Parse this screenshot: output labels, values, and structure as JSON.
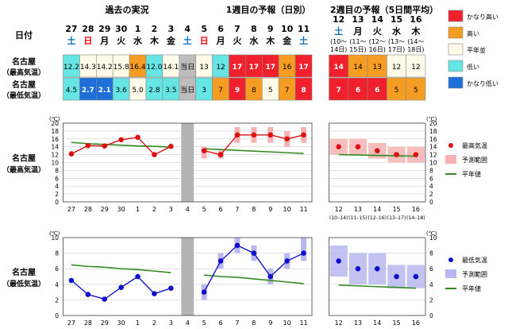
{
  "header": {
    "period_past": "過去の実況",
    "period_week1": "1週目の予報（日別）",
    "period_week2": "2週目の予報（5日間平均）",
    "date_label": "日付"
  },
  "dates": {
    "days": [
      "27",
      "28",
      "29",
      "30",
      "1",
      "2",
      "3",
      "4",
      "5",
      "6",
      "7",
      "8",
      "9",
      "10",
      "11"
    ],
    "weekdays": [
      "土",
      "日",
      "月",
      "火",
      "水",
      "木",
      "金",
      "土",
      "日",
      "月",
      "火",
      "水",
      "木",
      "金",
      "土"
    ],
    "weekday_colors": [
      "#0070c0",
      "#ff0000",
      "#000000",
      "#000000",
      "#000000",
      "#000000",
      "#000000",
      "#0070c0",
      "#ff0000",
      "#000000",
      "#000000",
      "#000000",
      "#000000",
      "#000000",
      "#0070c0"
    ],
    "week2": [
      {
        "day": "12",
        "wd": "土",
        "range": "(10〜",
        "range2": "14日)",
        "wd_color": "#0070c0"
      },
      {
        "day": "13",
        "wd": "月",
        "range": "(11〜",
        "range2": "15日)",
        "wd_color": "#000000"
      },
      {
        "day": "14",
        "wd": "火",
        "range": "(12〜",
        "range2": "16日)",
        "wd_color": "#000000"
      },
      {
        "day": "15",
        "wd": "水",
        "range": "(13〜",
        "range2": "17日)",
        "wd_color": "#000000"
      },
      {
        "day": "16",
        "wd": "木",
        "range": "(14〜",
        "range2": "18日)",
        "wd_color": "#000000"
      }
    ]
  },
  "table": {
    "rows": [
      {
        "label1": "名古屋",
        "label2": "（最高気温）",
        "cells": [
          {
            "v": "12.2",
            "bg": "#66e5e5",
            "fg": "#000000"
          },
          {
            "v": "14.3",
            "bg": "#fffbe8",
            "fg": "#000000"
          },
          {
            "v": "14.2",
            "bg": "#fffbe8",
            "fg": "#000000"
          },
          {
            "v": "15.8",
            "bg": "#fffbe8",
            "fg": "#000000"
          },
          {
            "v": "16.4",
            "bg": "#f59c22",
            "fg": "#000000"
          },
          {
            "v": "12.0",
            "bg": "#66e5e5",
            "fg": "#000000"
          },
          {
            "v": "14.1",
            "bg": "#fffbe8",
            "fg": "#000000"
          },
          {
            "v": "当日",
            "bg": "#bdbdbd",
            "fg": "#000000"
          },
          {
            "v": "13",
            "bg": "#fffbe8",
            "fg": "#000000"
          },
          {
            "v": "12",
            "bg": "#66e5e5",
            "fg": "#000000"
          },
          {
            "v": "17",
            "bg": "#f0202c",
            "fg": "#ffffff"
          },
          {
            "v": "17",
            "bg": "#f0202c",
            "fg": "#ffffff"
          },
          {
            "v": "17",
            "bg": "#f0202c",
            "fg": "#ffffff"
          },
          {
            "v": "16",
            "bg": "#f59c22",
            "fg": "#000000"
          },
          {
            "v": "17",
            "bg": "#f0202c",
            "fg": "#ffffff"
          }
        ],
        "week2": [
          {
            "v": "14",
            "bg": "#f0202c",
            "fg": "#ffffff"
          },
          {
            "v": "14",
            "bg": "#f59c22",
            "fg": "#000000"
          },
          {
            "v": "13",
            "bg": "#f59c22",
            "fg": "#000000"
          },
          {
            "v": "12",
            "bg": "#fffbe8",
            "fg": "#000000"
          },
          {
            "v": "12",
            "bg": "#fffbe8",
            "fg": "#000000"
          }
        ]
      },
      {
        "label1": "名古屋",
        "label2": "（最低気温）",
        "cells": [
          {
            "v": "4.5",
            "bg": "#66e5e5",
            "fg": "#000000"
          },
          {
            "v": "2.7",
            "bg": "#1f6fd8",
            "fg": "#ffffff"
          },
          {
            "v": "2.1",
            "bg": "#1f6fd8",
            "fg": "#ffffff"
          },
          {
            "v": "3.6",
            "bg": "#66e5e5",
            "fg": "#000000"
          },
          {
            "v": "5.0",
            "bg": "#fffbe8",
            "fg": "#000000"
          },
          {
            "v": "2.8",
            "bg": "#66e5e5",
            "fg": "#000000"
          },
          {
            "v": "3.5",
            "bg": "#66e5e5",
            "fg": "#000000"
          },
          {
            "v": "当日",
            "bg": "#bdbdbd",
            "fg": "#000000"
          },
          {
            "v": "3",
            "bg": "#66e5e5",
            "fg": "#000000"
          },
          {
            "v": "7",
            "bg": "#f59c22",
            "fg": "#000000"
          },
          {
            "v": "9",
            "bg": "#f0202c",
            "fg": "#ffffff"
          },
          {
            "v": "8",
            "bg": "#f59c22",
            "fg": "#000000"
          },
          {
            "v": "5",
            "bg": "#fffbe8",
            "fg": "#000000"
          },
          {
            "v": "7",
            "bg": "#f59c22",
            "fg": "#000000"
          },
          {
            "v": "8",
            "bg": "#f0202c",
            "fg": "#ffffff"
          }
        ],
        "week2": [
          {
            "v": "7",
            "bg": "#f0202c",
            "fg": "#ffffff"
          },
          {
            "v": "6",
            "bg": "#f0202c",
            "fg": "#ffffff"
          },
          {
            "v": "6",
            "bg": "#f0202c",
            "fg": "#ffffff"
          },
          {
            "v": "5",
            "bg": "#f59c22",
            "fg": "#000000"
          },
          {
            "v": "5",
            "bg": "#f59c22",
            "fg": "#000000"
          }
        ]
      }
    ]
  },
  "category_legend": [
    {
      "label": "かなり高い",
      "color": "#f0202c"
    },
    {
      "label": "高い",
      "color": "#f59c22"
    },
    {
      "label": "平年並",
      "color": "#fffbe8"
    },
    {
      "label": "低い",
      "color": "#66e5e5"
    },
    {
      "label": "かなり低い",
      "color": "#1f6fd8"
    }
  ],
  "chart_data": [
    {
      "type": "line",
      "title": "名古屋（最高気温）",
      "label1": "名古屋",
      "label2": "（最高気温）",
      "unit": "(℃)",
      "ylim": [
        0,
        20
      ],
      "yticks": [
        0,
        2,
        4,
        6,
        8,
        10,
        12,
        14,
        16,
        18,
        20
      ],
      "x_daily": [
        "27",
        "28",
        "29",
        "30",
        "1",
        "2",
        "3",
        "4",
        "5",
        "6",
        "7",
        "8",
        "9",
        "10",
        "11"
      ],
      "x_week2": [
        "12",
        "13",
        "14",
        "15",
        "16"
      ],
      "x_week2_ranges": [
        "(10–14)",
        "(11–15)",
        "(12–16)",
        "(13–17)",
        "(14–18)"
      ],
      "observed": [
        12.2,
        14.3,
        14.2,
        15.8,
        16.4,
        12.0,
        14.1
      ],
      "forecast": [
        13,
        12,
        17,
        17,
        17,
        16,
        17
      ],
      "forecast_range": [
        [
          11,
          14
        ],
        [
          11,
          13
        ],
        [
          15,
          19
        ],
        [
          15,
          19
        ],
        [
          15,
          19
        ],
        [
          14,
          18
        ],
        [
          15,
          19
        ]
      ],
      "normal_past": [
        15.1,
        14.8,
        14.6,
        14.4,
        14.2,
        14.1,
        13.9
      ],
      "normal_week1": [
        13.5,
        13.3,
        13.1,
        12.9,
        12.7,
        12.5,
        12.3
      ],
      "week2_forecast": [
        14,
        14,
        13,
        12,
        12
      ],
      "week2_range": [
        [
          12,
          16
        ],
        [
          12,
          16
        ],
        [
          11,
          15
        ],
        [
          10,
          14
        ],
        [
          10,
          14
        ]
      ],
      "week2_normal": [
        12.0,
        11.9,
        11.8,
        11.7,
        11.6
      ],
      "series_color": "#dd1111",
      "range_color": "#f7b3b3",
      "normal_color": "#338a22",
      "legend": [
        "最高気温",
        "予測範囲",
        "平年値"
      ]
    },
    {
      "type": "line",
      "title": "名古屋（最低気温）",
      "label1": "名古屋",
      "label2": "（最低気温）",
      "unit": "(℃)",
      "ylim": [
        0,
        10
      ],
      "yticks": [
        0,
        2,
        4,
        6,
        8,
        10
      ],
      "x_daily": [
        "27",
        "28",
        "29",
        "30",
        "1",
        "2",
        "3",
        "4",
        "5",
        "6",
        "7",
        "8",
        "9",
        "10",
        "11"
      ],
      "x_week2": [
        "12",
        "13",
        "14",
        "15",
        "16"
      ],
      "x_week2_ranges": [
        "(10–14)",
        "(11–15)",
        "(12–16)",
        "(13–17)",
        "(14–18)"
      ],
      "observed": [
        4.5,
        2.7,
        2.1,
        3.6,
        5.0,
        2.8,
        3.5
      ],
      "forecast": [
        3,
        7,
        9,
        8,
        5,
        7,
        8
      ],
      "forecast_range": [
        [
          2,
          4
        ],
        [
          6,
          8
        ],
        [
          8,
          10
        ],
        [
          7,
          9
        ],
        [
          4,
          6
        ],
        [
          6,
          8
        ],
        [
          7,
          10
        ]
      ],
      "normal_past": [
        6.5,
        6.3,
        6.2,
        6.0,
        5.9,
        5.7,
        5.5
      ],
      "normal_week1": [
        5.2,
        5.0,
        4.9,
        4.7,
        4.5,
        4.3,
        4.1
      ],
      "week2_forecast": [
        7,
        6,
        6,
        5,
        5
      ],
      "week2_range": [
        [
          5,
          9
        ],
        [
          4,
          8
        ],
        [
          4,
          8
        ],
        [
          3.5,
          6.5
        ],
        [
          3.5,
          6.5
        ]
      ],
      "week2_normal": [
        3.9,
        3.8,
        3.7,
        3.6,
        3.5
      ],
      "series_color": "#1010cc",
      "range_color": "#b8b8f0",
      "normal_color": "#338a22",
      "legend": [
        "最低気温",
        "予測範囲",
        "平年値"
      ]
    }
  ]
}
